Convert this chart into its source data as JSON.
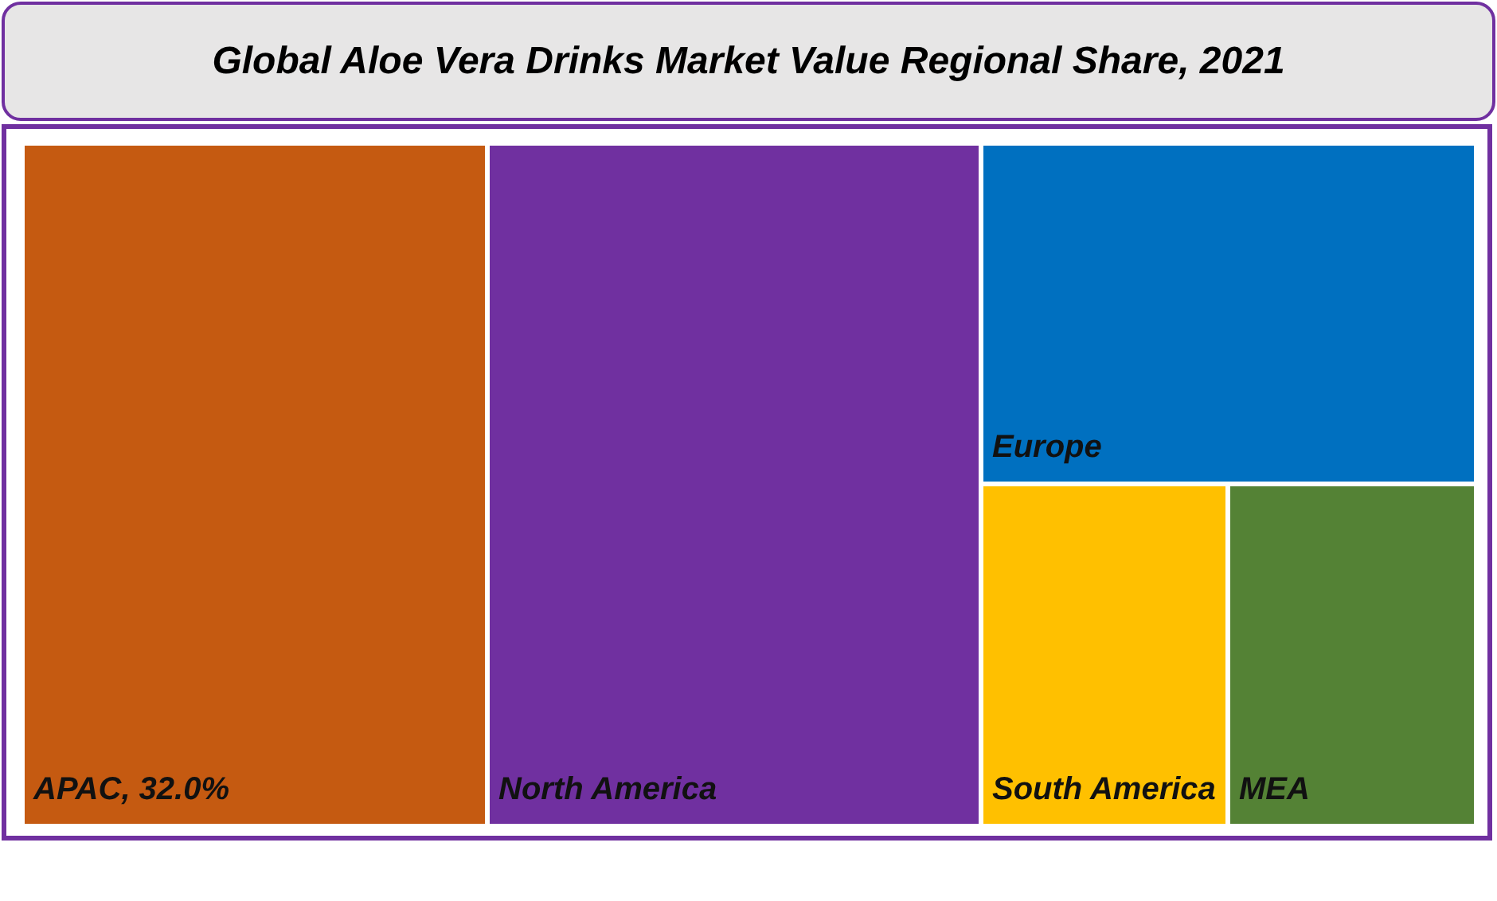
{
  "chart_data": {
    "type": "other",
    "title": "Global Aloe Vera Drinks Market Value Regional Share, 2021",
    "categories": [
      "APAC",
      "North America",
      "Europe",
      "South America",
      "MEA"
    ],
    "values": [
      32.0,
      null,
      null,
      null,
      null
    ],
    "value_labels": [
      ", 32.0%",
      null,
      null,
      null,
      null
    ],
    "colors": [
      "#c55a11",
      "#7030a0",
      "#0070c0",
      "#ffc000",
      "#548235"
    ]
  }
}
